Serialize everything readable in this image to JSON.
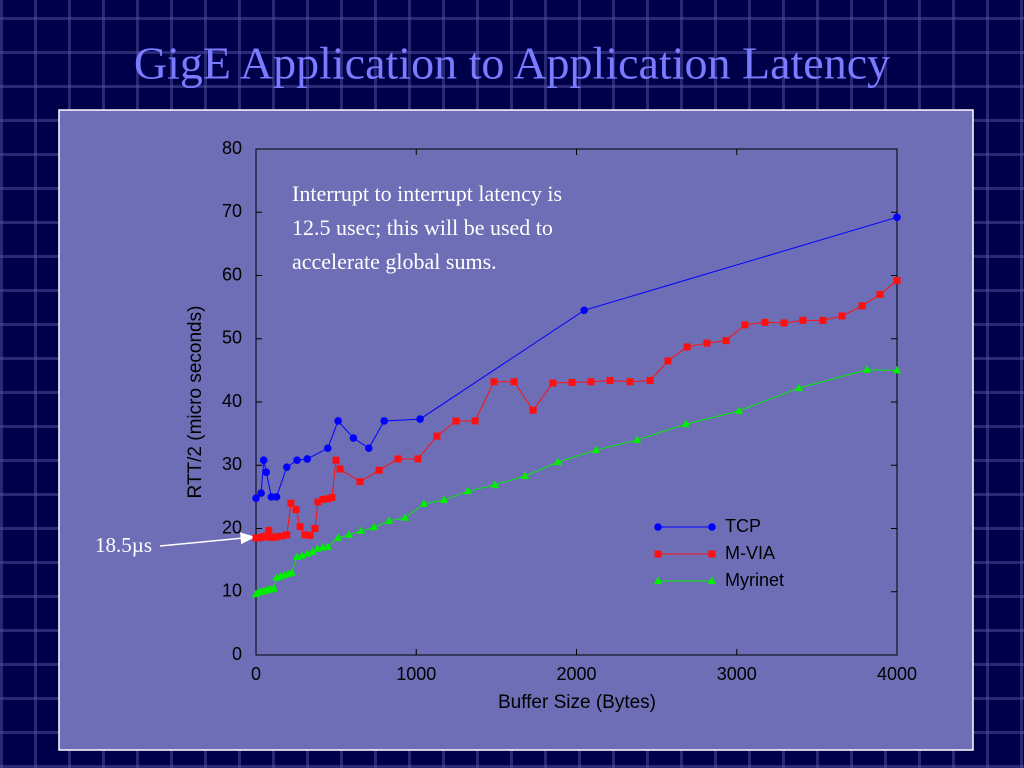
{
  "chart_data": {
    "type": "line",
    "title": "GigE Application to Application Latency",
    "xlabel": "Buffer Size (Bytes)",
    "ylabel": "RTT/2 (micro seconds)",
    "annotation_lines": [
      "Interrupt to interrupt latency is",
      "12.5 usec; this will be used to",
      "accelerate global sums."
    ],
    "callout": "18.5µs",
    "xlim": [
      0,
      4000
    ],
    "ylim": [
      0,
      80
    ],
    "xticks": [
      0,
      1000,
      2000,
      3000,
      4000
    ],
    "yticks": [
      0,
      10,
      20,
      30,
      40,
      50,
      60,
      70,
      80
    ],
    "grid": false,
    "legend": "lower right",
    "series": [
      {
        "name": "TCP",
        "color": "#0000ff",
        "marker": "circle",
        "x": [
          0,
          32,
          48,
          64,
          96,
          128,
          192,
          256,
          320,
          448,
          512,
          608,
          704,
          800,
          1024,
          2048,
          4000
        ],
        "values": [
          24.8,
          25.6,
          30.8,
          28.9,
          25,
          25,
          29.7,
          30.8,
          31,
          32.7,
          37,
          34.3,
          32.7,
          37,
          37.3,
          54.5,
          69.2
        ]
      },
      {
        "name": "M-VIA",
        "color": "#ff1010",
        "marker": "square",
        "x": [
          0,
          16,
          32,
          48,
          64,
          80,
          96,
          112,
          128,
          160,
          192,
          218,
          250,
          275,
          306,
          337,
          368,
          387,
          418,
          449,
          474,
          499,
          524,
          649,
          768,
          886,
          1011,
          1129,
          1248,
          1367,
          1485,
          1610,
          1729,
          1853,
          1972,
          2090,
          2209,
          2334,
          2459,
          2571,
          2690,
          2814,
          2933,
          3051,
          3176,
          3295,
          3413,
          3538,
          3657,
          3782,
          3894,
          4000
        ],
        "values": [
          18.5,
          18.5,
          18.6,
          18.7,
          18.8,
          19.7,
          18.6,
          18.6,
          18.7,
          18.8,
          19,
          24,
          23,
          20.3,
          19,
          18.9,
          20,
          24.2,
          24.6,
          24.7,
          24.9,
          30.8,
          29.4,
          27.4,
          29.2,
          31,
          31,
          34.6,
          37,
          37,
          43.2,
          43.2,
          38.7,
          43,
          43.1,
          43.2,
          43.4,
          43.2,
          43.4,
          46.5,
          48.7,
          49.3,
          49.7,
          52.2,
          52.6,
          52.5,
          52.9,
          52.9,
          53.6,
          55.2,
          57,
          59.2
        ]
      },
      {
        "name": "Myrinet",
        "color": "#00ee00",
        "marker": "triangle",
        "x": [
          0,
          16,
          32,
          48,
          64,
          80,
          96,
          112,
          128,
          152,
          176,
          200,
          224,
          256,
          288,
          320,
          352,
          384,
          416,
          448,
          512,
          580,
          655,
          736,
          830,
          930,
          1048,
          1173,
          1323,
          1491,
          1679,
          1885,
          2122,
          2378,
          2683,
          3014,
          3388,
          3813,
          4000
        ],
        "values": [
          9.6,
          9.9,
          10,
          10.1,
          10.2,
          10.3,
          10.4,
          10.5,
          12.2,
          12.4,
          12.6,
          12.8,
          13,
          15.5,
          15.7,
          16,
          16.3,
          16.8,
          17,
          17.1,
          18.5,
          19,
          19.6,
          20.2,
          21.2,
          21.7,
          23.9,
          24.5,
          25.9,
          26.9,
          28.3,
          30.5,
          32.4,
          34,
          36.5,
          38.6,
          42.2,
          45.1,
          45
        ]
      }
    ]
  }
}
